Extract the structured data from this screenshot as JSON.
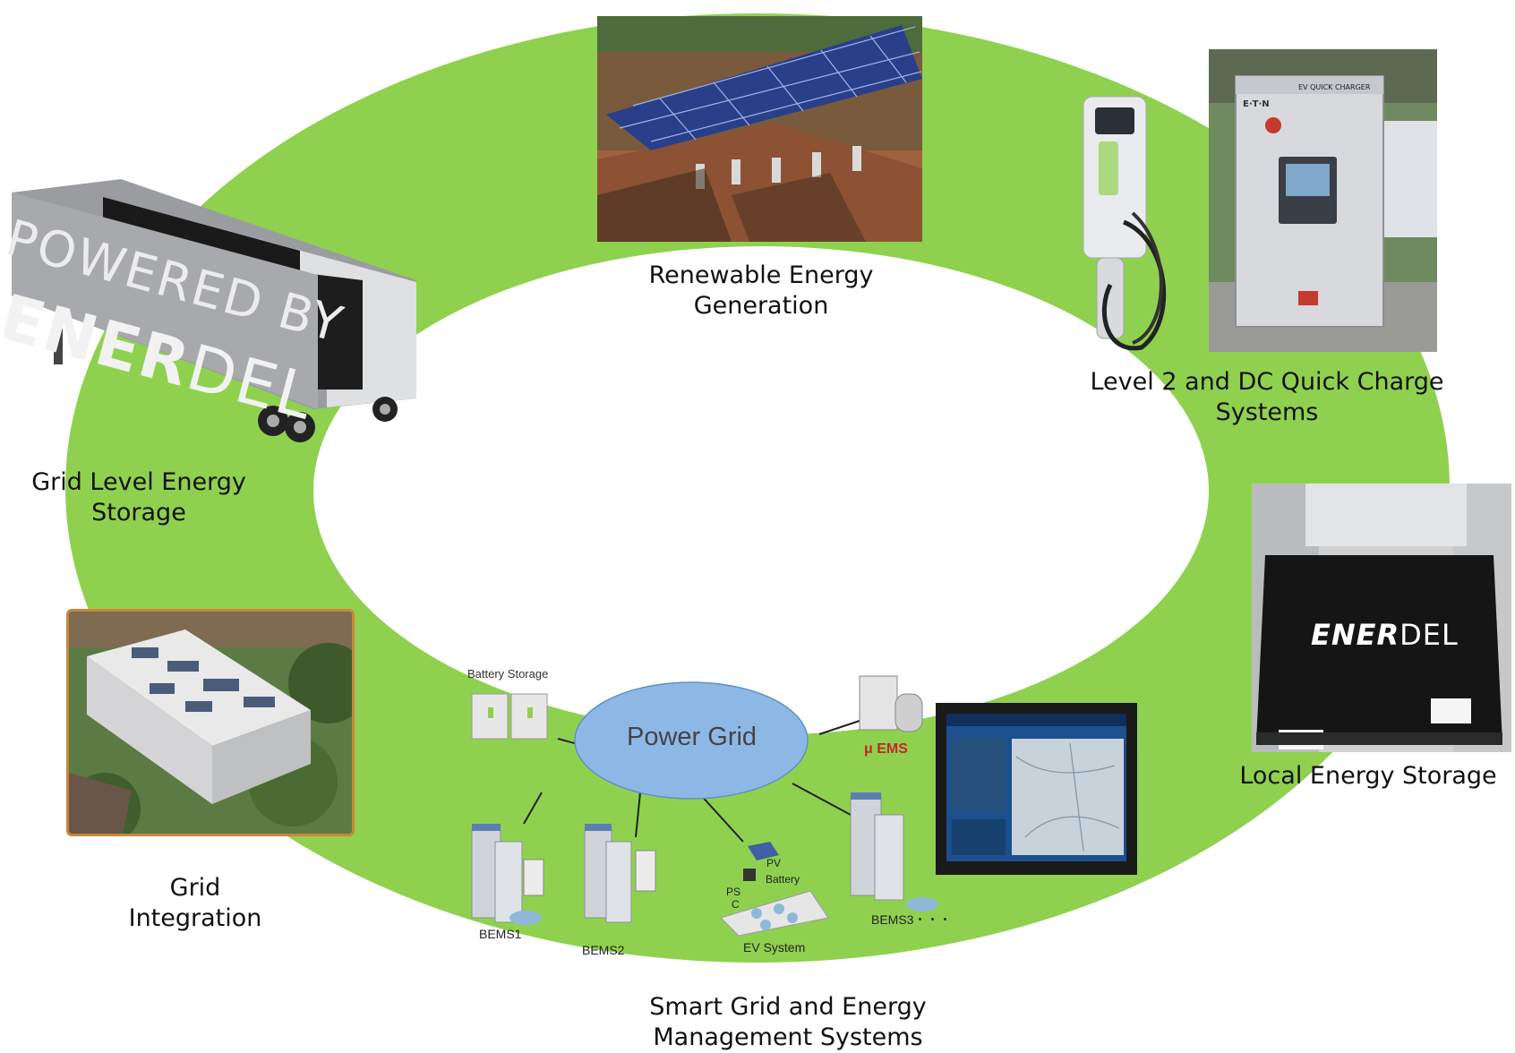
{
  "colors": {
    "ring": "#8fd14f",
    "inner": "#ffffff",
    "photo_border": "#c9873a",
    "grid_blue": "#8db8e6"
  },
  "labels": {
    "renewable": [
      "Renewable Energy",
      "Generation"
    ],
    "charging": [
      "Level 2 and DC Quick Charge",
      "Systems"
    ],
    "grid_storage": [
      "Grid Level Energy",
      "Storage"
    ],
    "local_storage": "Local Energy Storage",
    "grid_integration": [
      "Grid",
      "Integration"
    ],
    "smart_grid": [
      "Smart Grid and Energy",
      "Management Systems"
    ]
  },
  "trailer": {
    "brand_top": "POWERED BY",
    "brand_bold": "ENER",
    "brand_light": "DEL"
  },
  "charger": {
    "header": "EV QUICK CHARGER",
    "brand": "E·T·N"
  },
  "battery_box": {
    "brand_bold": "ENER",
    "brand_light": "DEL"
  },
  "smart_grid_diagram": {
    "hub": "Power Grid",
    "battery_storage": "Battery Storage",
    "uems": "μ EMS",
    "pv": "PV",
    "battery": "Battery",
    "ps": "PS",
    "c": "C",
    "bems1": "BEMS1",
    "bems2": "BEMS2",
    "bems3": "BEMS3・・・",
    "ev_system": "EV System"
  },
  "icons": [
    "solar-canopy-photo",
    "ev-charger-photo",
    "trailer-image",
    "battery-box-photo",
    "building-photo",
    "monitor-screen"
  ]
}
